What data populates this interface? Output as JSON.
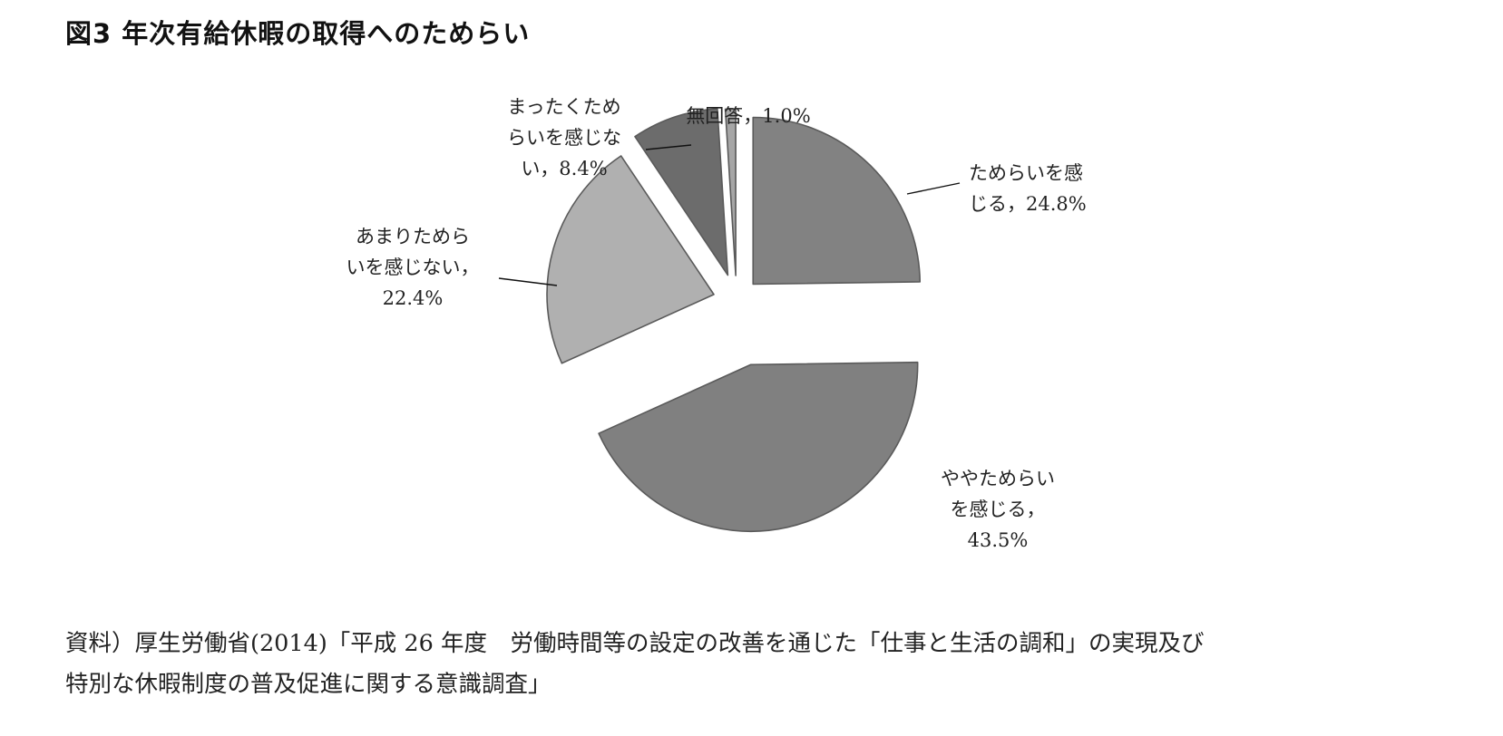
{
  "title": "図3 年次有給休暇の取得へのためらい",
  "chart_data": {
    "type": "pie",
    "title": "図3 年次有給休暇の取得へのためらい",
    "start": "12 o'clock",
    "direction": "clockwise",
    "exploded": true,
    "slices": [
      {
        "name": "ためらいを感じる",
        "value": 24.8,
        "value_label": "24.8%",
        "label_lines": [
          "ためらいを感",
          "じる，24.8%"
        ],
        "color": "#828282"
      },
      {
        "name": "ややためらいを感じる",
        "value": 43.5,
        "value_label": "43.5%",
        "label_lines": [
          "ややためらい",
          "を感じる，",
          "43.5%"
        ],
        "color": "#808080"
      },
      {
        "name": "あまりためらいを感じない",
        "value": 22.4,
        "value_label": "22.4%",
        "label_lines": [
          "あまりためら",
          "いを感じない，",
          "22.4%"
        ],
        "color": "#b0b0b0"
      },
      {
        "name": "まったくためらいを感じない",
        "value": 8.4,
        "value_label": "8.4%",
        "label_lines": [
          "まったくため",
          "らいを感じな",
          "い，8.4%"
        ],
        "color": "#6c6c6c"
      },
      {
        "name": "無回答",
        "value": 1.0,
        "value_label": "1.0%",
        "label_lines": [
          "無回答，1.0%"
        ],
        "color": "#a6a6a6"
      }
    ]
  },
  "source": {
    "lines": [
      "資料）厚生労働省(2014)「平成 26 年度　労働時間等の設定の改善を通じた「仕事と生活の調和」の実現及び",
      "特別な休暇制度の普及促進に関する意識調査」"
    ]
  }
}
